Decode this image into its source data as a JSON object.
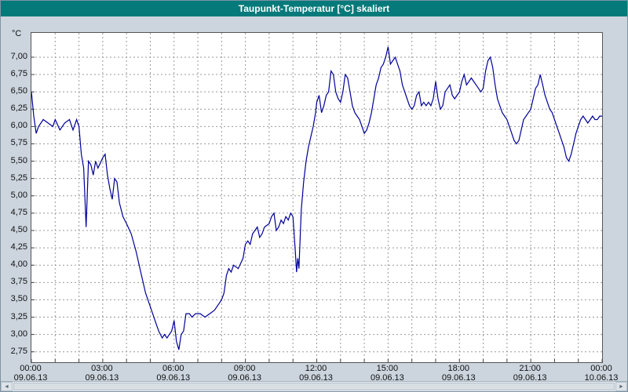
{
  "window": {
    "title": "Taupunkt-Temperatur [°C] skaliert"
  },
  "colors": {
    "titlebar_bg": "#067a7a",
    "titlebar_text": "#ffffff",
    "window_bg": "#ccd5de",
    "plot_bg": "#ffffff",
    "grid": "#999999",
    "line": "#000099",
    "axis_text": "#111111"
  },
  "scrollbar": {
    "left_arrow": "◄",
    "right_arrow": "►"
  },
  "chart_data": {
    "type": "line",
    "title": "Taupunkt-Temperatur [°C] skaliert",
    "ylabel": "°C",
    "xlabel": "",
    "grid": true,
    "legend": "none",
    "xlim": [
      0,
      24
    ],
    "ylim": [
      2.6,
      7.35
    ],
    "x_grid_step_hours": 1,
    "y_ticks": [
      {
        "label": "7,00",
        "value": 7.0
      },
      {
        "label": "6,75",
        "value": 6.75
      },
      {
        "label": "6,50",
        "value": 6.5
      },
      {
        "label": "6,25",
        "value": 6.25
      },
      {
        "label": "6,00",
        "value": 6.0
      },
      {
        "label": "5,75",
        "value": 5.75
      },
      {
        "label": "5,50",
        "value": 5.5
      },
      {
        "label": "5,25",
        "value": 5.25
      },
      {
        "label": "5,00",
        "value": 5.0
      },
      {
        "label": "4,75",
        "value": 4.75
      },
      {
        "label": "4,50",
        "value": 4.5
      },
      {
        "label": "4,25",
        "value": 4.25
      },
      {
        "label": "4,00",
        "value": 4.0
      },
      {
        "label": "3,75",
        "value": 3.75
      },
      {
        "label": "3,50",
        "value": 3.5
      },
      {
        "label": "3,25",
        "value": 3.25
      },
      {
        "label": "3,00",
        "value": 3.0
      },
      {
        "label": "2,75",
        "value": 2.75
      }
    ],
    "x_ticks": [
      {
        "hour": 0,
        "time": "00:00",
        "date": "09.06.13"
      },
      {
        "hour": 3,
        "time": "03:00",
        "date": "09.06.13"
      },
      {
        "hour": 6,
        "time": "06:00",
        "date": "09.06.13"
      },
      {
        "hour": 9,
        "time": "09:00",
        "date": "09.06.13"
      },
      {
        "hour": 12,
        "time": "12:00",
        "date": "09.06.13"
      },
      {
        "hour": 15,
        "time": "15:00",
        "date": "09.06.13"
      },
      {
        "hour": 18,
        "time": "18:00",
        "date": "09.06.13"
      },
      {
        "hour": 21,
        "time": "21:00",
        "date": "09.06.13"
      },
      {
        "hour": 24,
        "time": "00:00",
        "date": "10.06.13"
      }
    ],
    "series_name": "Taupunkt-Temperatur",
    "points": [
      [
        0,
        6.5
      ],
      [
        0.1,
        6.15
      ],
      [
        0.2,
        5.9
      ],
      [
        0.3,
        6.0
      ],
      [
        0.5,
        6.1
      ],
      [
        0.7,
        6.05
      ],
      [
        0.9,
        6.0
      ],
      [
        1.0,
        6.1
      ],
      [
        1.2,
        5.95
      ],
      [
        1.4,
        6.05
      ],
      [
        1.6,
        6.1
      ],
      [
        1.75,
        5.95
      ],
      [
        1.9,
        6.1
      ],
      [
        2.0,
        6.0
      ],
      [
        2.1,
        5.6
      ],
      [
        2.2,
        5.4
      ],
      [
        2.3,
        4.55
      ],
      [
        2.4,
        5.5
      ],
      [
        2.5,
        5.45
      ],
      [
        2.6,
        5.3
      ],
      [
        2.7,
        5.5
      ],
      [
        2.8,
        5.4
      ],
      [
        3.0,
        5.55
      ],
      [
        3.1,
        5.6
      ],
      [
        3.2,
        5.3
      ],
      [
        3.3,
        5.1
      ],
      [
        3.4,
        4.95
      ],
      [
        3.5,
        5.25
      ],
      [
        3.6,
        5.2
      ],
      [
        3.7,
        4.9
      ],
      [
        3.85,
        4.7
      ],
      [
        4.0,
        4.6
      ],
      [
        4.2,
        4.45
      ],
      [
        4.4,
        4.2
      ],
      [
        4.6,
        3.9
      ],
      [
        4.8,
        3.6
      ],
      [
        5.0,
        3.4
      ],
      [
        5.2,
        3.2
      ],
      [
        5.35,
        3.05
      ],
      [
        5.5,
        2.95
      ],
      [
        5.6,
        3.0
      ],
      [
        5.7,
        2.95
      ],
      [
        5.8,
        3.0
      ],
      [
        5.9,
        3.05
      ],
      [
        6.0,
        3.2
      ],
      [
        6.1,
        2.9
      ],
      [
        6.2,
        2.78
      ],
      [
        6.3,
        3.0
      ],
      [
        6.4,
        3.05
      ],
      [
        6.5,
        3.3
      ],
      [
        6.65,
        3.3
      ],
      [
        6.75,
        3.25
      ],
      [
        6.9,
        3.3
      ],
      [
        7.1,
        3.3
      ],
      [
        7.3,
        3.25
      ],
      [
        7.5,
        3.3
      ],
      [
        7.7,
        3.35
      ],
      [
        7.9,
        3.45
      ],
      [
        8.0,
        3.5
      ],
      [
        8.1,
        3.6
      ],
      [
        8.2,
        3.85
      ],
      [
        8.3,
        3.95
      ],
      [
        8.4,
        3.9
      ],
      [
        8.5,
        4.0
      ],
      [
        8.7,
        3.95
      ],
      [
        8.9,
        4.1
      ],
      [
        9.0,
        4.3
      ],
      [
        9.1,
        4.35
      ],
      [
        9.2,
        4.3
      ],
      [
        9.3,
        4.45
      ],
      [
        9.4,
        4.5
      ],
      [
        9.5,
        4.55
      ],
      [
        9.6,
        4.4
      ],
      [
        9.7,
        4.45
      ],
      [
        9.8,
        4.55
      ],
      [
        10.0,
        4.6
      ],
      [
        10.1,
        4.7
      ],
      [
        10.2,
        4.75
      ],
      [
        10.3,
        4.5
      ],
      [
        10.4,
        4.55
      ],
      [
        10.5,
        4.65
      ],
      [
        10.6,
        4.6
      ],
      [
        10.7,
        4.7
      ],
      [
        10.8,
        4.65
      ],
      [
        10.9,
        4.75
      ],
      [
        11.0,
        4.7
      ],
      [
        11.1,
        4.2
      ],
      [
        11.15,
        3.9
      ],
      [
        11.2,
        4.1
      ],
      [
        11.25,
        3.95
      ],
      [
        11.35,
        4.8
      ],
      [
        11.45,
        5.2
      ],
      [
        11.55,
        5.5
      ],
      [
        11.65,
        5.7
      ],
      [
        11.75,
        5.85
      ],
      [
        11.85,
        6.0
      ],
      [
        11.95,
        6.2
      ],
      [
        12.0,
        6.35
      ],
      [
        12.1,
        6.45
      ],
      [
        12.2,
        6.2
      ],
      [
        12.3,
        6.3
      ],
      [
        12.4,
        6.45
      ],
      [
        12.5,
        6.5
      ],
      [
        12.6,
        6.8
      ],
      [
        12.7,
        6.75
      ],
      [
        12.8,
        6.5
      ],
      [
        12.9,
        6.4
      ],
      [
        13.0,
        6.35
      ],
      [
        13.1,
        6.5
      ],
      [
        13.2,
        6.75
      ],
      [
        13.3,
        6.7
      ],
      [
        13.4,
        6.5
      ],
      [
        13.5,
        6.3
      ],
      [
        13.6,
        6.2
      ],
      [
        13.7,
        6.15
      ],
      [
        13.8,
        6.1
      ],
      [
        13.9,
        6.0
      ],
      [
        14.0,
        5.9
      ],
      [
        14.1,
        5.95
      ],
      [
        14.2,
        6.05
      ],
      [
        14.3,
        6.2
      ],
      [
        14.4,
        6.4
      ],
      [
        14.5,
        6.6
      ],
      [
        14.6,
        6.7
      ],
      [
        14.7,
        6.85
      ],
      [
        14.8,
        6.9
      ],
      [
        14.9,
        7.0
      ],
      [
        15.0,
        7.15
      ],
      [
        15.1,
        6.9
      ],
      [
        15.2,
        6.95
      ],
      [
        15.3,
        7.0
      ],
      [
        15.4,
        6.9
      ],
      [
        15.5,
        6.8
      ],
      [
        15.6,
        6.6
      ],
      [
        15.7,
        6.5
      ],
      [
        15.8,
        6.4
      ],
      [
        15.9,
        6.3
      ],
      [
        16.0,
        6.25
      ],
      [
        16.1,
        6.3
      ],
      [
        16.2,
        6.45
      ],
      [
        16.3,
        6.5
      ],
      [
        16.4,
        6.3
      ],
      [
        16.5,
        6.35
      ],
      [
        16.6,
        6.3
      ],
      [
        16.7,
        6.35
      ],
      [
        16.8,
        6.3
      ],
      [
        16.9,
        6.4
      ],
      [
        17.0,
        6.65
      ],
      [
        17.1,
        6.4
      ],
      [
        17.2,
        6.25
      ],
      [
        17.3,
        6.3
      ],
      [
        17.4,
        6.5
      ],
      [
        17.5,
        6.55
      ],
      [
        17.6,
        6.6
      ],
      [
        17.7,
        6.45
      ],
      [
        17.8,
        6.4
      ],
      [
        17.9,
        6.45
      ],
      [
        18.0,
        6.5
      ],
      [
        18.1,
        6.65
      ],
      [
        18.2,
        6.75
      ],
      [
        18.3,
        6.6
      ],
      [
        18.4,
        6.65
      ],
      [
        18.5,
        6.7
      ],
      [
        18.6,
        6.65
      ],
      [
        18.7,
        6.6
      ],
      [
        18.8,
        6.55
      ],
      [
        18.9,
        6.5
      ],
      [
        19.0,
        6.55
      ],
      [
        19.1,
        6.8
      ],
      [
        19.2,
        6.95
      ],
      [
        19.3,
        7.0
      ],
      [
        19.4,
        6.85
      ],
      [
        19.5,
        6.6
      ],
      [
        19.6,
        6.4
      ],
      [
        19.7,
        6.3
      ],
      [
        19.8,
        6.2
      ],
      [
        19.9,
        6.15
      ],
      [
        20.0,
        6.1
      ],
      [
        20.1,
        6.0
      ],
      [
        20.2,
        5.9
      ],
      [
        20.3,
        5.8
      ],
      [
        20.4,
        5.75
      ],
      [
        20.5,
        5.8
      ],
      [
        20.6,
        5.95
      ],
      [
        20.7,
        6.1
      ],
      [
        20.8,
        6.15
      ],
      [
        20.9,
        6.2
      ],
      [
        21.0,
        6.25
      ],
      [
        21.1,
        6.4
      ],
      [
        21.2,
        6.55
      ],
      [
        21.3,
        6.6
      ],
      [
        21.4,
        6.75
      ],
      [
        21.5,
        6.6
      ],
      [
        21.6,
        6.45
      ],
      [
        21.7,
        6.35
      ],
      [
        21.8,
        6.25
      ],
      [
        21.9,
        6.2
      ],
      [
        22.0,
        6.1
      ],
      [
        22.1,
        6.0
      ],
      [
        22.2,
        5.9
      ],
      [
        22.3,
        5.8
      ],
      [
        22.4,
        5.7
      ],
      [
        22.5,
        5.55
      ],
      [
        22.6,
        5.5
      ],
      [
        22.7,
        5.6
      ],
      [
        22.8,
        5.75
      ],
      [
        22.9,
        5.9
      ],
      [
        23.0,
        6.0
      ],
      [
        23.1,
        6.1
      ],
      [
        23.2,
        6.15
      ],
      [
        23.3,
        6.1
      ],
      [
        23.4,
        6.05
      ],
      [
        23.5,
        6.1
      ],
      [
        23.6,
        6.15
      ],
      [
        23.7,
        6.1
      ],
      [
        23.8,
        6.1
      ],
      [
        23.9,
        6.15
      ],
      [
        24.0,
        6.15
      ]
    ]
  }
}
